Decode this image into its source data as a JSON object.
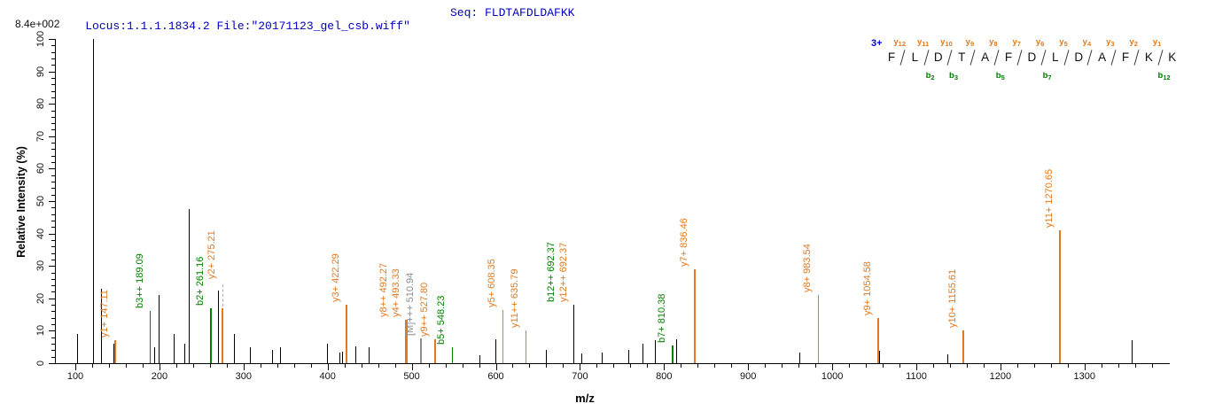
{
  "header": {
    "locus_file": "Locus:1.1.1.1834.2 File:\"20171123_gel_csb.wiff\"",
    "seq": "Seq: FLDTAFDLDAFKK",
    "intensity_scale": "8.4e+002"
  },
  "axes": {
    "x_title": "m/z",
    "y_title": "Relative  Intensity (%)",
    "x_major_ticks": [
      100,
      200,
      300,
      400,
      500,
      600,
      700,
      800,
      900,
      1000,
      1100,
      1200,
      1300
    ],
    "x_minor_step": 20,
    "x_minor_max": 1380,
    "y_major_ticks": [
      0,
      10,
      20,
      30,
      40,
      50,
      60,
      70,
      80,
      90,
      100
    ],
    "y_minor_step": 2
  },
  "colors": {
    "y_ion": "#e2791e",
    "b_ion": "#008000",
    "precursor": "#8c8c8c",
    "peak": "#000000",
    "header_blue": "#0000bb",
    "charge_blue": "#0000cc",
    "leader_gray": "#aaaaaa"
  },
  "chart_data": {
    "type": "bar",
    "subtype": "ms2-centroid-stick-spectrum",
    "xlabel": "m/z",
    "ylabel": "Relative  Intensity (%)",
    "xlim": [
      89,
      1395
    ],
    "ylim": [
      0,
      100
    ],
    "grid": false,
    "intensity_scale_label": "8.4e+002",
    "peaks": [
      {
        "mz": 103,
        "intensity_pct": 9
      },
      {
        "mz": 122,
        "intensity_pct": 100
      },
      {
        "mz": 131,
        "intensity_pct": 23
      },
      {
        "mz": 145.5,
        "intensity_pct": 6
      },
      {
        "mz": 147.11,
        "intensity_pct": 7,
        "ion": "y",
        "labels": [
          {
            "text": "y1+ 147.11"
          }
        ]
      },
      {
        "mz": 189.09,
        "intensity_pct": 16,
        "ion": "b",
        "labels": [
          {
            "text": "b3++ 189.09"
          }
        ]
      },
      {
        "mz": 194,
        "intensity_pct": 5
      },
      {
        "mz": 200,
        "intensity_pct": 21
      },
      {
        "mz": 218,
        "intensity_pct": 9
      },
      {
        "mz": 230,
        "intensity_pct": 6
      },
      {
        "mz": 235,
        "intensity_pct": 47.5
      },
      {
        "mz": 261.16,
        "intensity_pct": 17,
        "ion": "b",
        "labels": [
          {
            "text": "b2+ 261.16"
          }
        ]
      },
      {
        "mz": 270,
        "intensity_pct": 22.5
      },
      {
        "mz": 275.21,
        "intensity_pct": 17,
        "ion": "y",
        "raise": 30,
        "labels": [
          {
            "text": "y2+ 275.21"
          }
        ]
      },
      {
        "mz": 289,
        "intensity_pct": 9
      },
      {
        "mz": 308,
        "intensity_pct": 5
      },
      {
        "mz": 334,
        "intensity_pct": 4
      },
      {
        "mz": 344,
        "intensity_pct": 5
      },
      {
        "mz": 400,
        "intensity_pct": 6
      },
      {
        "mz": 415,
        "intensity_pct": 3.3
      },
      {
        "mz": 418,
        "intensity_pct": 3.5
      },
      {
        "mz": 422.29,
        "intensity_pct": 18,
        "ion": "y",
        "labels": [
          {
            "text": "y3+ 422.29"
          }
        ]
      },
      {
        "mz": 434,
        "intensity_pct": 5.3
      },
      {
        "mz": 449,
        "intensity_pct": 5
      },
      {
        "mz": 493.33,
        "intensity_pct": 13.5,
        "ion": "y",
        "w": 3,
        "labels": [
          {
            "text": "y8++ 492.27",
            "dx": -13
          },
          {
            "text": "y4+ 493.33",
            "dx": 1
          }
        ]
      },
      {
        "mz": 510.94,
        "intensity_pct": 7.7,
        "ion": "precursor",
        "labels": [
          {
            "text": "[M]+++ 510.94"
          }
        ]
      },
      {
        "mz": 527.8,
        "intensity_pct": 7.5,
        "ion": "y",
        "labels": [
          {
            "text": "y9++ 527.80"
          }
        ]
      },
      {
        "mz": 548.23,
        "intensity_pct": 5,
        "ion": "b",
        "labels": [
          {
            "text": "b5+ 548.23"
          }
        ]
      },
      {
        "mz": 581,
        "intensity_pct": 2.5
      },
      {
        "mz": 600,
        "intensity_pct": 7.5
      },
      {
        "mz": 608.35,
        "intensity_pct": 16.5,
        "ion": "y",
        "labels": [
          {
            "text": "y5+ 608.35"
          }
        ]
      },
      {
        "mz": 635.79,
        "intensity_pct": 10,
        "ion": "y",
        "labels": [
          {
            "text": "y11++ 635.79"
          }
        ]
      },
      {
        "mz": 660,
        "intensity_pct": 4
      },
      {
        "mz": 692.37,
        "intensity_pct": 18,
        "labels": [
          {
            "text": "b12++ 692.37",
            "ion": "b",
            "dx": -13
          },
          {
            "text": "y12++ 692.37",
            "ion": "y",
            "dx": 1
          }
        ]
      },
      {
        "mz": 702,
        "intensity_pct": 3
      },
      {
        "mz": 726,
        "intensity_pct": 3.3
      },
      {
        "mz": 758,
        "intensity_pct": 4
      },
      {
        "mz": 775,
        "intensity_pct": 6
      },
      {
        "mz": 790,
        "intensity_pct": 7
      },
      {
        "mz": 810.38,
        "intensity_pct": 5.5,
        "ion": "b",
        "labels": [
          {
            "text": "b7+ 810.38"
          }
        ]
      },
      {
        "mz": 815,
        "intensity_pct": 7.5
      },
      {
        "mz": 836.46,
        "intensity_pct": 29,
        "ion": "y",
        "labels": [
          {
            "text": "y7+ 836.46"
          }
        ]
      },
      {
        "mz": 961,
        "intensity_pct": 3.4
      },
      {
        "mz": 983.54,
        "intensity_pct": 21,
        "ion": "y",
        "labels": [
          {
            "text": "y8+ 983.54"
          }
        ]
      },
      {
        "mz": 1054.58,
        "intensity_pct": 14,
        "ion": "y",
        "labels": [
          {
            "text": "y9+ 1054.58"
          }
        ]
      },
      {
        "mz": 1056.5,
        "intensity_pct": 3.7
      },
      {
        "mz": 1137,
        "intensity_pct": 2.7
      },
      {
        "mz": 1155.61,
        "intensity_pct": 10,
        "ion": "y",
        "labels": [
          {
            "text": "y10+ 1155.61"
          }
        ]
      },
      {
        "mz": 1270.65,
        "intensity_pct": 41,
        "ion": "y",
        "labels": [
          {
            "text": "y11+ 1270.65"
          }
        ]
      },
      {
        "mz": 1357,
        "intensity_pct": 7
      }
    ]
  },
  "sequence_map": {
    "charge": "3+",
    "residues": [
      "F",
      "L",
      "D",
      "T",
      "A",
      "F",
      "D",
      "L",
      "D",
      "A",
      "F",
      "K",
      "K"
    ],
    "boundaries": [
      {
        "y": "y12"
      },
      {
        "y": "y11",
        "b": "b2"
      },
      {
        "y": "y10",
        "b": "b3"
      },
      {
        "y": "y9"
      },
      {
        "y": "y8",
        "b": "b5"
      },
      {
        "y": "y7"
      },
      {
        "y": "y6",
        "b": "b7"
      },
      {
        "y": "y5"
      },
      {
        "y": "y4"
      },
      {
        "y": "y3"
      },
      {
        "y": "y2"
      },
      {
        "y": "y1",
        "b": "b12"
      }
    ]
  }
}
